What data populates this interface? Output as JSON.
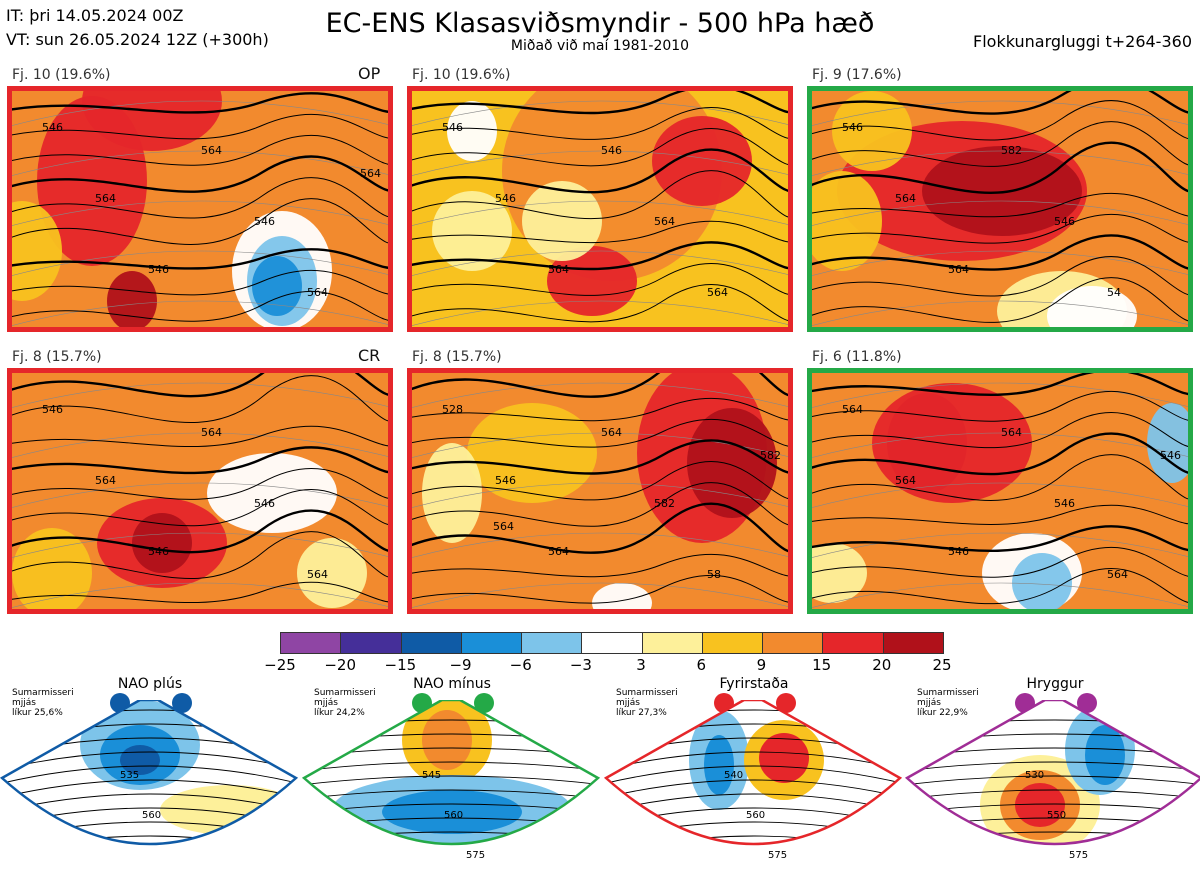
{
  "header": {
    "it_line": "IT: þri 14.05.2024 00Z",
    "vt_line": "VT: sun 26.05.2024 12Z  (+300h)",
    "title": "EC-ENS Klasasviðsmyndir - 500 hPa hæð",
    "subtitle": "Miðað við maí 1981-2010",
    "window": "Flokkunargluggi t+264-360"
  },
  "panels": [
    {
      "label": "Fj. 10 (19.6%)",
      "tag": "OP",
      "frame": "red",
      "contours": [
        "546",
        "564",
        "546",
        "564",
        "546",
        "564",
        "564"
      ]
    },
    {
      "label": "Fj. 10 (19.6%)",
      "tag": "",
      "frame": "red",
      "contours": [
        "546",
        "546",
        "564",
        "546",
        "564",
        "564"
      ]
    },
    {
      "label": "Fj. 9 (17.6%)",
      "tag": "",
      "frame": "green",
      "contours": [
        "546",
        "564",
        "564",
        "582",
        "546",
        "54"
      ]
    },
    {
      "label": "Fj. 8 (15.7%)",
      "tag": "CR",
      "frame": "red",
      "contours": [
        "546",
        "564",
        "546",
        "564",
        "546",
        "564"
      ]
    },
    {
      "label": "Fj. 8 (15.7%)",
      "tag": "",
      "frame": "red",
      "contours": [
        "528",
        "546",
        "564",
        "564",
        "582",
        "58",
        "582",
        "564"
      ]
    },
    {
      "label": "Fj. 6 (11.8%)",
      "tag": "",
      "frame": "green",
      "contours": [
        "564",
        "564",
        "546",
        "564",
        "546",
        "564",
        "546"
      ]
    }
  ],
  "chart_data": {
    "type": "heatmap",
    "colorbar": {
      "ticks": [
        "−25",
        "−20",
        "−15",
        "−9",
        "−6",
        "−3",
        "3",
        "6",
        "9",
        "15",
        "20",
        "25"
      ],
      "colors": [
        "#8f45a4",
        "#452f99",
        "#0f5ba6",
        "#1a8fd8",
        "#7dc4ea",
        "#ffffff",
        "#fdf09a",
        "#f8c21f",
        "#f28a2e",
        "#e5262a",
        "#b0111a"
      ]
    }
  },
  "regimes": [
    {
      "title": "NAO plús",
      "note": [
        "Sumarmisseri",
        "mjjás",
        "líkur 25,6%"
      ],
      "color": "#0f5ba6",
      "labels": [
        "535",
        "560"
      ]
    },
    {
      "title": "NAO mínus",
      "note": [
        "Sumarmisseri",
        "mjjás",
        "líkur 24,2%"
      ],
      "color": "#24a947",
      "labels": [
        "545",
        "560",
        "575"
      ]
    },
    {
      "title": "Fyrirstaða",
      "note": [
        "Sumarmisseri",
        "mjjás",
        "líkur 27,3%"
      ],
      "color": "#e5262a",
      "labels": [
        "540",
        "560",
        "575"
      ]
    },
    {
      "title": "Hryggur",
      "note": [
        "Sumarmisseri",
        "mjjás",
        "líkur 22,9%"
      ],
      "color": "#a02d96",
      "labels": [
        "530",
        "550",
        "575"
      ]
    }
  ]
}
